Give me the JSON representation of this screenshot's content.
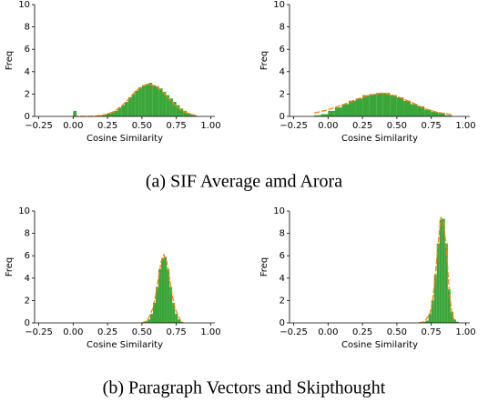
{
  "chart_data": [
    {
      "type": "histogram",
      "xlabel": "Cosine Similarity",
      "ylabel": "Freq",
      "color": "#3aa63a",
      "bins": [
        0.0,
        0.025,
        0.05,
        0.075,
        0.1,
        0.125,
        0.15,
        0.175,
        0.2,
        0.225,
        0.25,
        0.275,
        0.3,
        0.325,
        0.35,
        0.375,
        0.4,
        0.425,
        0.45,
        0.475,
        0.5,
        0.525,
        0.55,
        0.575,
        0.6,
        0.625,
        0.65,
        0.675,
        0.7,
        0.725,
        0.75,
        0.775,
        0.8,
        0.825,
        0.85,
        0.875,
        0.9
      ],
      "counts": [
        0.5,
        0,
        0,
        0,
        0,
        0,
        0,
        0.1,
        0.1,
        0.2,
        0.3,
        0.4,
        0.5,
        0.8,
        1.0,
        1.3,
        1.7,
        2.0,
        2.3,
        2.6,
        2.8,
        2.9,
        3.0,
        2.8,
        2.7,
        2.5,
        2.2,
        1.9,
        1.6,
        1.3,
        1.0,
        0.7,
        0.5,
        0.3,
        0.2,
        0.1
      ],
      "curve": {
        "color": "#ff7f0e",
        "x": [
          0.0,
          0.05,
          0.1,
          0.15,
          0.2,
          0.25,
          0.3,
          0.35,
          0.4,
          0.45,
          0.5,
          0.55,
          0.6,
          0.65,
          0.7,
          0.75,
          0.8,
          0.85,
          0.9
        ],
        "values": [
          0.0,
          0.0,
          0.0,
          0.02,
          0.08,
          0.2,
          0.45,
          0.9,
          1.5,
          2.2,
          2.7,
          2.9,
          2.7,
          2.2,
          1.5,
          0.9,
          0.45,
          0.2,
          0.08
        ]
      },
      "xlim": [
        -0.28,
        1.03
      ],
      "ylim": [
        0,
        10
      ],
      "xticks": [
        {
          "value": -0.25,
          "label": "−0.25"
        },
        {
          "value": 0,
          "label": "0.00"
        },
        0.25,
        {
          "value": 0.5,
          "label": "0.50"
        },
        0.75,
        {
          "value": 1,
          "label": "1.00"
        }
      ],
      "yticks": [
        0,
        2,
        4,
        6,
        8,
        10
      ]
    },
    {
      "type": "histogram",
      "xlabel": "Cosine Similarity",
      "ylabel": "Freq",
      "color": "#3aa63a",
      "bins": [
        -0.1,
        -0.05,
        0.0,
        0.05,
        0.1,
        0.15,
        0.2,
        0.25,
        0.3,
        0.35,
        0.4,
        0.45,
        0.5,
        0.55,
        0.6,
        0.65,
        0.7,
        0.75,
        0.8,
        0.85,
        0.9
      ],
      "counts": [
        0.1,
        0.2,
        0.5,
        0.8,
        1.1,
        1.4,
        1.6,
        1.9,
        2.0,
        2.1,
        2.1,
        1.9,
        1.7,
        1.4,
        1.1,
        0.9,
        0.6,
        0.4,
        0.3,
        0.1
      ],
      "curve": {
        "color": "#ff7f0e",
        "x": [
          -0.1,
          0.0,
          0.1,
          0.2,
          0.3,
          0.4,
          0.5,
          0.6,
          0.7,
          0.8,
          0.9
        ],
        "values": [
          0.3,
          0.6,
          1.0,
          1.5,
          1.9,
          2.1,
          1.8,
          1.3,
          0.7,
          0.35,
          0.15
        ]
      },
      "xlim": [
        -0.28,
        1.03
      ],
      "ylim": [
        0,
        10
      ],
      "xticks": [
        {
          "value": -0.25,
          "label": "−0.25"
        },
        {
          "value": 0,
          "label": "0.00"
        },
        0.25,
        {
          "value": 0.5,
          "label": "0.50"
        },
        0.75,
        {
          "value": 1,
          "label": "1.00"
        }
      ],
      "yticks": [
        0,
        2,
        4,
        6,
        8,
        10
      ]
    },
    {
      "type": "histogram",
      "xlabel": "Cosine Similarity",
      "ylabel": "Freq",
      "color": "#3aa63a",
      "bins": [
        0.5,
        0.52,
        0.54,
        0.56,
        0.58,
        0.6,
        0.62,
        0.64,
        0.66,
        0.68,
        0.7,
        0.72,
        0.74,
        0.76,
        0.78,
        0.8
      ],
      "counts": [
        0.0,
        0.1,
        0.3,
        0.8,
        1.8,
        3.2,
        4.8,
        5.8,
        5.9,
        4.8,
        3.2,
        1.8,
        0.8,
        0.3,
        0.1
      ],
      "curve": {
        "color": "#ff7f0e",
        "x": [
          0.5,
          0.54,
          0.58,
          0.6,
          0.62,
          0.64,
          0.66,
          0.68,
          0.7,
          0.72,
          0.74,
          0.78,
          0.8
        ],
        "values": [
          0.0,
          0.2,
          1.3,
          2.5,
          4.0,
          5.5,
          6.1,
          5.5,
          4.0,
          2.5,
          1.3,
          0.2,
          0.0
        ]
      },
      "xlim": [
        -0.28,
        1.03
      ],
      "ylim": [
        0,
        10
      ],
      "xticks": [
        {
          "value": -0.25,
          "label": "−0.25"
        },
        {
          "value": 0,
          "label": "0.00"
        },
        0.25,
        {
          "value": 0.5,
          "label": "0.50"
        },
        0.75,
        {
          "value": 1,
          "label": "1.00"
        }
      ],
      "yticks": [
        0,
        2,
        4,
        6,
        8,
        10
      ]
    },
    {
      "type": "histogram",
      "xlabel": "Cosine Similarity",
      "ylabel": "Freq",
      "color": "#3aa63a",
      "bins": [
        0.65,
        0.67,
        0.69,
        0.71,
        0.73,
        0.75,
        0.77,
        0.79,
        0.81,
        0.83,
        0.85,
        0.87,
        0.89,
        0.91,
        0.93,
        0.95
      ],
      "counts": [
        0,
        0,
        0.1,
        0.2,
        0.8,
        2.0,
        4.3,
        7.1,
        9.2,
        9.3,
        7.1,
        3.0,
        1.0,
        0.3,
        0.1
      ],
      "curve": {
        "color": "#ff7f0e",
        "x": [
          0.66,
          0.7,
          0.74,
          0.76,
          0.78,
          0.8,
          0.82,
          0.84,
          0.86,
          0.88,
          0.9,
          0.92
        ],
        "values": [
          0.0,
          0.1,
          0.8,
          2.0,
          4.3,
          7.1,
          9.4,
          9.0,
          6.5,
          3.0,
          0.8,
          0.1
        ]
      },
      "xlim": [
        -0.28,
        1.03
      ],
      "ylim": [
        0,
        10
      ],
      "xticks": [
        {
          "value": -0.25,
          "label": "−0.25"
        },
        {
          "value": 0,
          "label": "0.00"
        },
        0.25,
        {
          "value": 0.5,
          "label": "0.50"
        },
        0.75,
        {
          "value": 1,
          "label": "1.00"
        }
      ],
      "yticks": [
        0,
        2,
        4,
        6,
        8,
        10
      ]
    }
  ],
  "captions": [
    "(a) SIF Average amd Arora",
    "(b) Paragraph Vectors and Skipthought"
  ]
}
